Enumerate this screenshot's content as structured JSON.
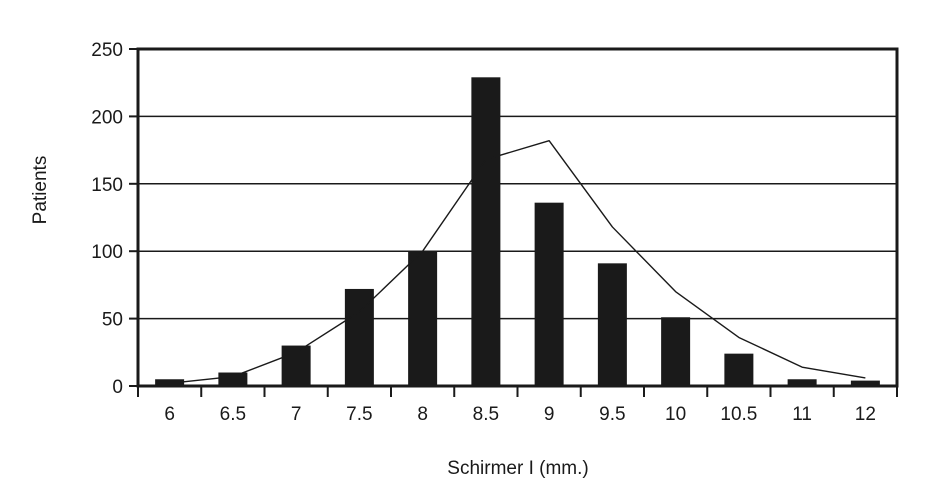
{
  "chart_data": {
    "type": "bar",
    "xlabel": "Schirmer I (mm.)",
    "ylabel": "Patients",
    "ylim": [
      0,
      250
    ],
    "yticks": [
      0,
      50,
      100,
      150,
      200,
      250
    ],
    "categories": [
      "6",
      "6.5",
      "7",
      "7.5",
      "8",
      "8.5",
      "9",
      "9.5",
      "10",
      "10.5",
      "11",
      "12"
    ],
    "series": [
      {
        "type": "bar",
        "values": [
          5,
          10,
          30,
          72,
          100,
          229,
          136,
          91,
          51,
          24,
          5,
          4
        ]
      },
      {
        "type": "line",
        "values": [
          2,
          7,
          25,
          55,
          100,
          168,
          182,
          118,
          70,
          36,
          14,
          6
        ]
      }
    ],
    "grid": true,
    "colors": {
      "bar": "#1a1a1a",
      "line": "#1a1a1a",
      "grid": "#1a1a1a"
    }
  }
}
